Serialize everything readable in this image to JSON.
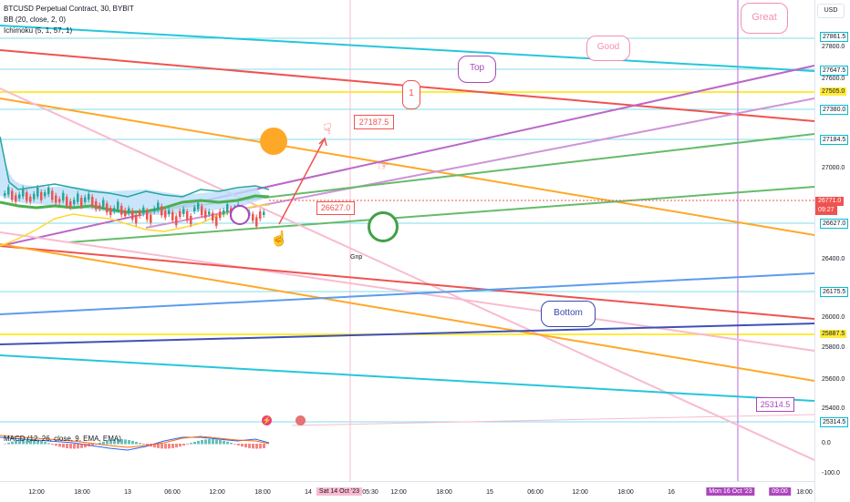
{
  "legend": {
    "symbol": "BTCUSD Perpetual Contract, 30, BYBIT",
    "bb": "BB (20, close, 2, 0)",
    "ichimoku": "Ichimoku (5, 1, 57, 1)",
    "macd": "MACD (12, 26, close, 9, EMA, EMA)"
  },
  "currency": "USD",
  "price_labels": [
    {
      "text": "27861.5",
      "boxed": true,
      "color": "#00bcd4"
    },
    {
      "text": "27800.0"
    },
    {
      "text": "27647.5",
      "boxed": true,
      "color": "#00bcd4"
    },
    {
      "text": "27600.0"
    },
    {
      "text": "27505.0",
      "boxed": true,
      "color": "#ffeb3b"
    },
    {
      "text": "27380.0",
      "boxed": true,
      "color": "#00bcd4"
    },
    {
      "text": "27184.5",
      "boxed": true,
      "color": "#00bcd4"
    },
    {
      "text": "27000.0"
    },
    {
      "text": "26771.0",
      "current": true
    },
    {
      "text": "09:27",
      "current": true
    },
    {
      "text": "26627.0",
      "boxed": true,
      "color": "#00bcd4"
    },
    {
      "text": "26400.0"
    },
    {
      "text": "26175.5",
      "boxed": true,
      "color": "#00bcd4"
    },
    {
      "text": "26000.0"
    },
    {
      "text": "25887.5",
      "boxed": true,
      "color": "#ffeb3b"
    },
    {
      "text": "25800.0"
    },
    {
      "text": "25600.0"
    },
    {
      "text": "25400.0"
    },
    {
      "text": "25314.5",
      "boxed": true,
      "color": "#00bcd4"
    },
    {
      "text": "0.0"
    },
    {
      "text": "-100.0"
    }
  ],
  "time_labels": [
    "12:00",
    "18:00",
    "13",
    "06:00",
    "12:00",
    "18:00",
    "14",
    "Sat 14 Oct '23",
    "05:30",
    "12:00",
    "18:00",
    "15",
    "06:00",
    "12:00",
    "18:00",
    "16",
    "Mon 16 Oct '23",
    "09:00",
    "18:00"
  ],
  "annotations": {
    "great": "Great",
    "good": "Good",
    "top": "Top",
    "one": "1",
    "bottom": "Bottom",
    "price_27187": "27187.5",
    "price_26627": "26627.0",
    "price_25314": "25314.5",
    "gnp": "Gnp"
  },
  "colors": {
    "cyan": "#26c6da",
    "red": "#ef5350",
    "orange": "#ffa726",
    "purple": "#ba68c8",
    "green": "#66bb6a",
    "yellow": "#ffeb3b",
    "blue": "#5c9ded",
    "navy": "#3f51b5",
    "pink": "#f8bbd0"
  },
  "icons": [
    "smile-emoji-icon",
    "purple-smile-emoji-icon",
    "confused-emoji-icon",
    "hand-point-up-icon",
    "hand-point-down-icon",
    "hand-point-right-icon",
    "lightning-icon",
    "us-flag-icon"
  ]
}
